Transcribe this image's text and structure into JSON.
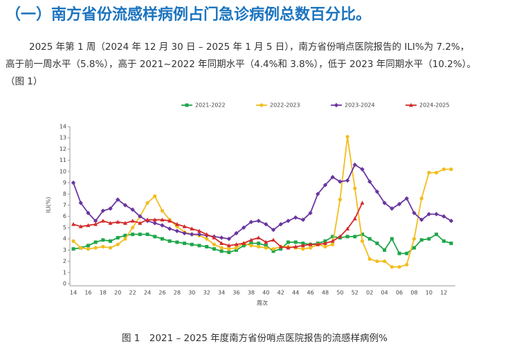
{
  "heading": "（一）南方省份流感样病例占门急诊病例总数百分比。",
  "paragraph": [
    "2025 年第 1 周（2024 年 12 月 30 日 – 2025 年 1 月 5 日），南方省份哨点医院报告的 ILI%为 7.2%，",
    "高于前一周水平（5.8%），高于 2021~2022 年同期水平（4.4%和 3.8%），低于 2023 年同期水平（10.2%）。",
    "（图 1）"
  ],
  "figure_caption": "图 1　2021 – 2025 年度南方省份哨点医院报告的流感样病例%",
  "chart_data": {
    "type": "line",
    "xlabel": "周次",
    "ylabel": "ILI(%)",
    "categories": [
      "14",
      null,
      "16",
      null,
      "18",
      null,
      "20",
      null,
      "22",
      null,
      "24",
      null,
      "26",
      null,
      "28",
      null,
      "30",
      null,
      "32",
      null,
      "34",
      null,
      "36",
      null,
      "38",
      null,
      "40",
      null,
      "42",
      null,
      "44",
      null,
      "46",
      null,
      "48",
      null,
      "50",
      null,
      "52",
      null,
      "02",
      null,
      "04",
      null,
      "06",
      null,
      "08",
      null,
      "10",
      null,
      "12",
      null
    ],
    "ylim": [
      0,
      14
    ],
    "yticks": [
      0,
      1,
      2,
      3,
      4,
      5,
      6,
      7,
      8,
      9,
      10,
      11,
      12,
      13,
      14
    ],
    "grid": false,
    "legend": "top",
    "series": [
      {
        "name": "2021-2022",
        "color": "#1fa64a",
        "marker": "square",
        "values": [
          3.1,
          3.2,
          3.4,
          3.7,
          3.9,
          3.8,
          4.1,
          4.3,
          4.4,
          4.4,
          4.4,
          4.2,
          4.0,
          3.8,
          3.7,
          3.6,
          3.5,
          3.4,
          3.3,
          3.1,
          2.9,
          2.8,
          3.0,
          3.4,
          3.6,
          3.6,
          3.4,
          2.9,
          3.1,
          3.7,
          3.7,
          3.6,
          3.5,
          3.6,
          3.8,
          4.2,
          4.1,
          4.2,
          4.2,
          4.4,
          4.0,
          3.6,
          3.0,
          4.0,
          2.7,
          2.7,
          3.2,
          3.9,
          4.0,
          4.4,
          3.8,
          3.6
        ]
      },
      {
        "name": "2022-2023",
        "color": "#f2bd1d",
        "marker": "circle",
        "values": [
          3.8,
          3.2,
          3.1,
          3.2,
          3.3,
          3.2,
          3.5,
          4.0,
          5.0,
          6.0,
          7.2,
          7.8,
          6.5,
          5.7,
          5.1,
          4.6,
          4.4,
          4.3,
          4.0,
          3.5,
          3.2,
          3.1,
          3.2,
          3.6,
          3.4,
          3.3,
          3.2,
          3.1,
          3.3,
          3.3,
          3.2,
          3.1,
          3.2,
          3.5,
          3.3,
          3.5,
          7.5,
          13.1,
          8.5,
          3.8,
          2.2,
          2.0,
          2.0,
          1.5,
          1.5,
          1.7,
          4.0,
          7.6,
          9.9,
          9.9,
          10.2,
          10.2
        ]
      },
      {
        "name": "2023-2024",
        "color": "#6a35a0",
        "marker": "diamond",
        "values": [
          9.0,
          7.2,
          6.3,
          5.6,
          6.5,
          6.7,
          7.5,
          7.0,
          6.6,
          6.0,
          5.6,
          5.4,
          5.2,
          4.9,
          4.7,
          4.5,
          4.4,
          4.4,
          4.3,
          4.2,
          4.1,
          4.0,
          4.5,
          5.0,
          5.5,
          5.6,
          5.3,
          4.8,
          5.3,
          5.6,
          5.9,
          5.7,
          6.3,
          8.0,
          8.8,
          9.5,
          9.1,
          9.2,
          10.6,
          10.2,
          9.1,
          8.2,
          7.2,
          6.7,
          7.1,
          7.6,
          6.3,
          5.7,
          6.2,
          6.2,
          6.0,
          5.6
        ]
      },
      {
        "name": "2024-2025",
        "color": "#d42a2a",
        "marker": "triangle",
        "values": [
          5.3,
          5.1,
          5.2,
          5.3,
          5.6,
          5.4,
          5.5,
          5.4,
          5.6,
          5.4,
          5.7,
          5.7,
          5.7,
          5.6,
          5.3,
          5.1,
          4.9,
          4.7,
          4.4,
          4.1,
          3.6,
          3.4,
          3.5,
          3.6,
          3.9,
          4.1,
          3.7,
          3.9,
          3.3,
          3.2,
          3.3,
          3.4,
          3.5,
          3.5,
          3.6,
          3.8,
          4.2,
          4.9,
          5.8,
          7.2,
          null,
          null,
          null,
          null,
          null,
          null,
          null,
          null,
          null,
          null,
          null,
          null
        ]
      }
    ]
  }
}
